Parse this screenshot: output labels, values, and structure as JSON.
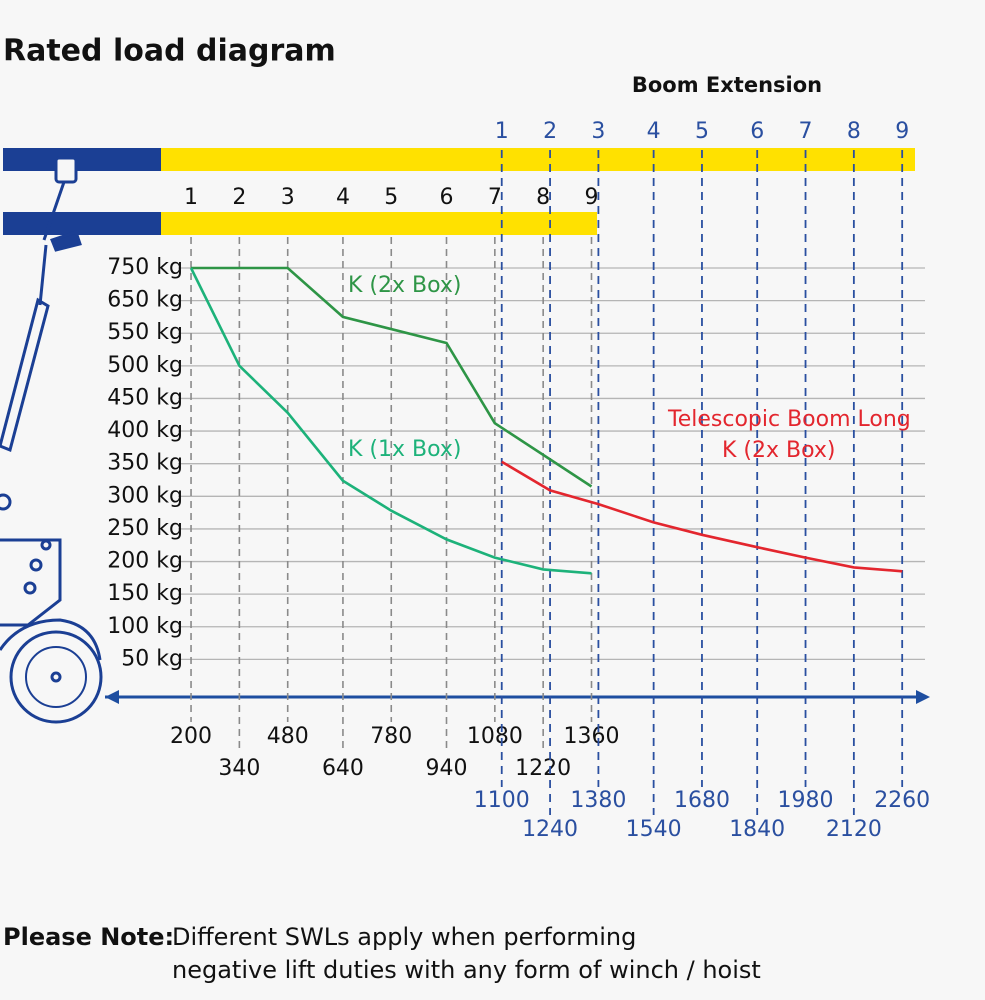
{
  "chart_data": {
    "type": "line",
    "title": "Rated load diagram",
    "header": "Boom Extension",
    "xlim": [
      0,
      2300
    ],
    "ylim": [
      0,
      750
    ],
    "yticks": [
      {
        "value": 50,
        "label": "50 kg"
      },
      {
        "value": 100,
        "label": "100 kg"
      },
      {
        "value": 150,
        "label": "150 kg"
      },
      {
        "value": 200,
        "label": "200 kg"
      },
      {
        "value": 250,
        "label": "250 kg"
      },
      {
        "value": 300,
        "label": "300 kg"
      },
      {
        "value": 350,
        "label": "350 kg"
      },
      {
        "value": 400,
        "label": "400 kg"
      },
      {
        "value": 450,
        "label": "450 kg"
      },
      {
        "value": 500,
        "label": "500 kg"
      },
      {
        "value": 550,
        "label": "550 kg"
      },
      {
        "value": 650,
        "label": "650 kg"
      },
      {
        "value": 750,
        "label": "750 kg"
      }
    ],
    "grid": true,
    "short_boom": {
      "positions": [
        1,
        2,
        3,
        4,
        5,
        6,
        7,
        8,
        9
      ],
      "x": [
        200,
        340,
        480,
        640,
        780,
        940,
        1080,
        1220,
        1360
      ]
    },
    "long_boom": {
      "positions": [
        1,
        2,
        3,
        4,
        5,
        6,
        7,
        8,
        9
      ],
      "x": [
        1100,
        1240,
        1380,
        1540,
        1680,
        1840,
        1980,
        2120,
        2260
      ]
    },
    "series": [
      {
        "name": "K (2x Box)",
        "color": "#2e9546",
        "x": [
          200,
          480,
          640,
          940,
          1080,
          1360
        ],
        "values": [
          750,
          750,
          600,
          535,
          412,
          315
        ]
      },
      {
        "name": "K (1x Box)",
        "color": "#1db27a",
        "x": [
          200,
          340,
          480,
          640,
          780,
          940,
          1080,
          1220,
          1360
        ],
        "values": [
          750,
          500,
          428,
          324,
          278,
          234,
          206,
          188,
          182
        ]
      },
      {
        "name": "Telescopic Boom Long",
        "subname": "K (2x Box)",
        "color": "#e3262e",
        "x": [
          1100,
          1240,
          1380,
          1540,
          1680,
          1840,
          1980,
          2120,
          2260
        ],
        "values": [
          353,
          309,
          288,
          260,
          241,
          222,
          206,
          191,
          185
        ]
      }
    ],
    "note": {
      "label": "Please Note:",
      "lines": [
        "Different SWLs apply when performing",
        "negative lift duties with any form of winch / hoist"
      ]
    }
  }
}
